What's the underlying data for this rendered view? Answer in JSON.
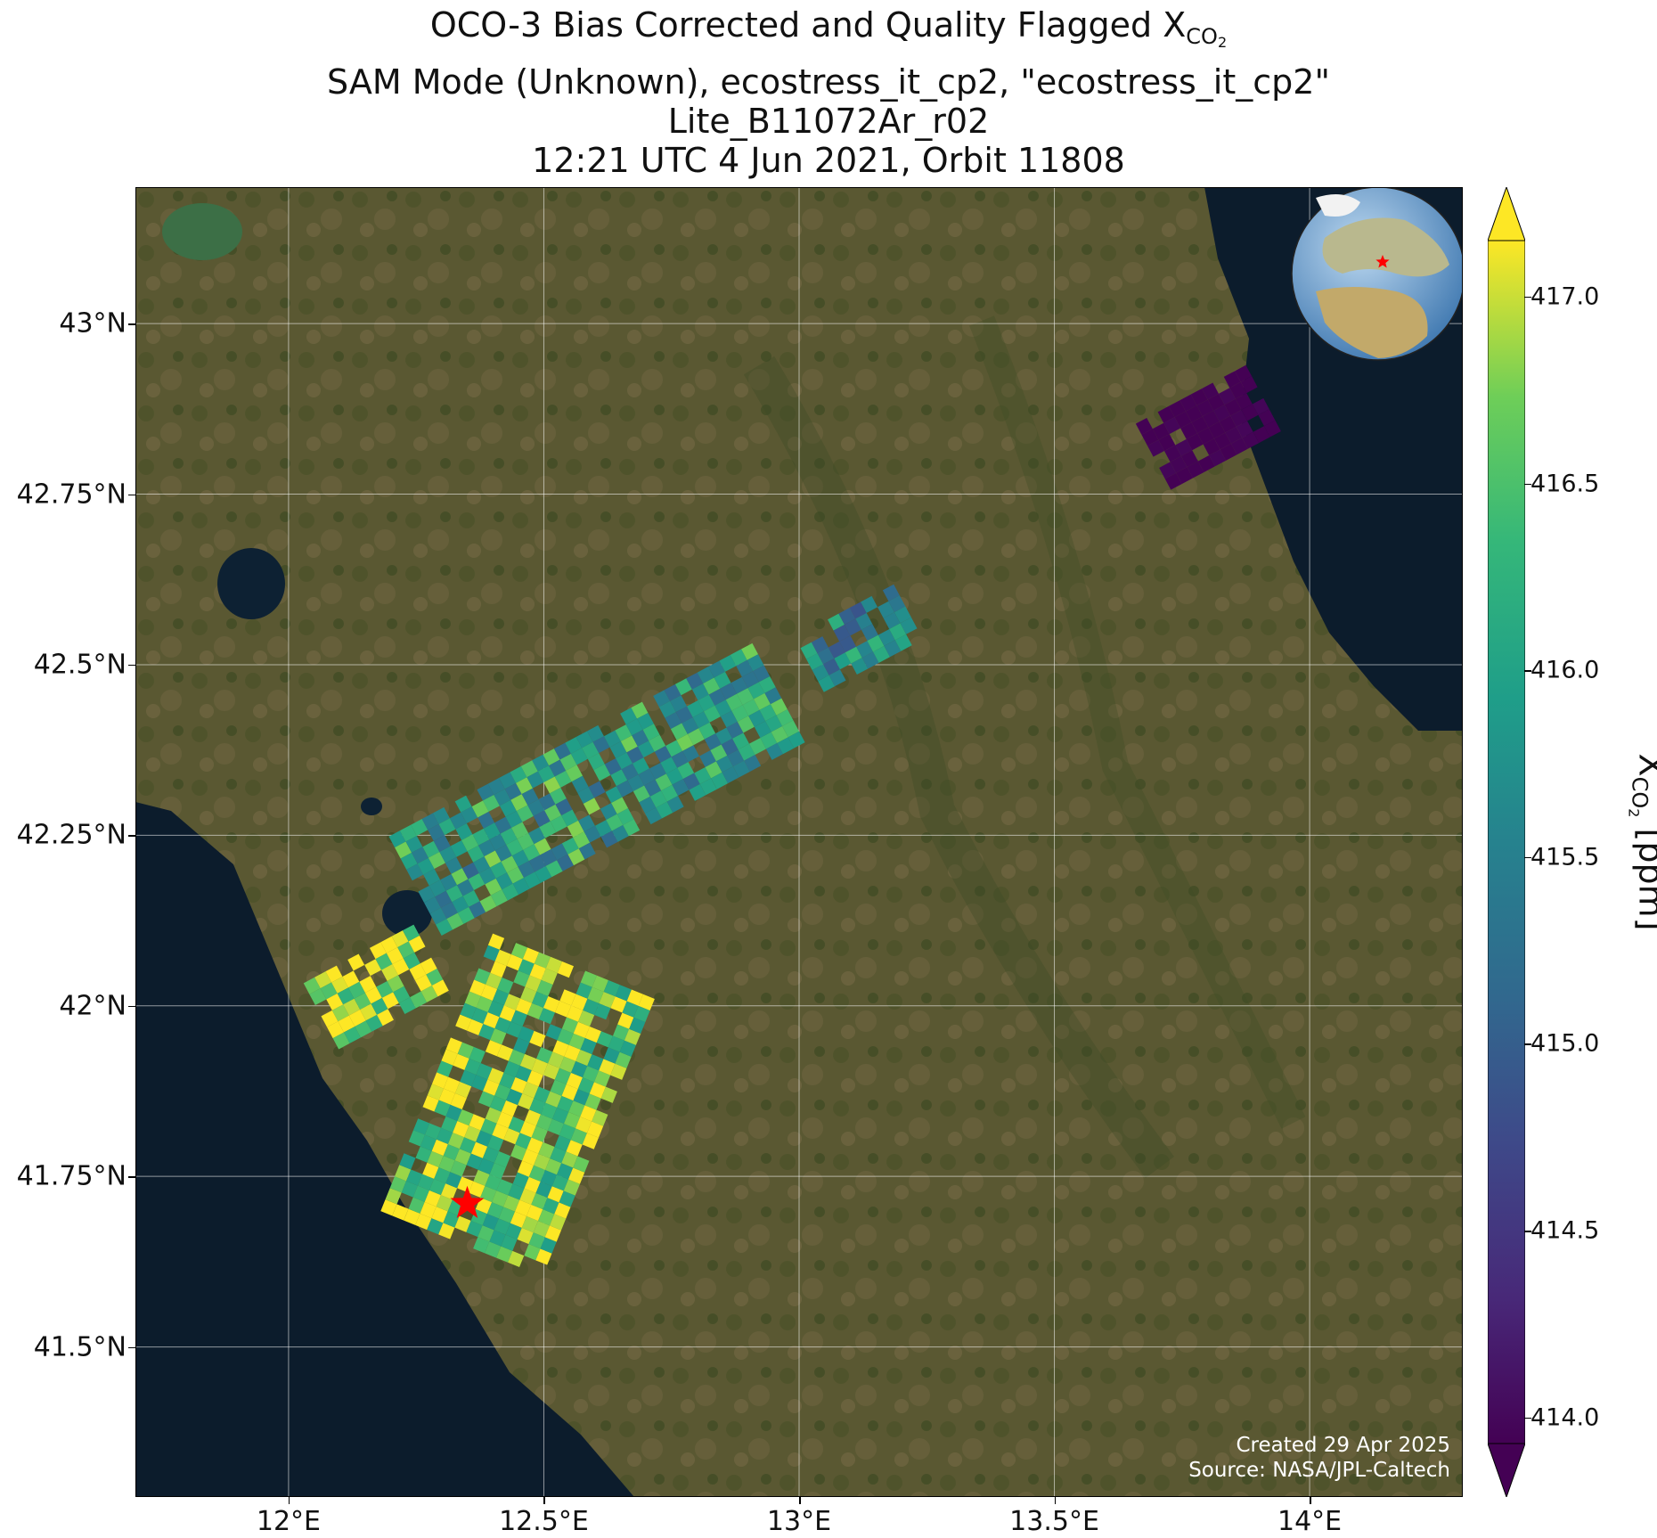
{
  "title": {
    "line1_prefix": "OCO-3 Bias Corrected and Quality Flagged X",
    "line1_sub": "CO",
    "line1_subsub": "2",
    "line2": "SAM Mode (Unknown), ecostress_it_cp2, \"ecostress_it_cp2\"",
    "line3": "Lite_B11072Ar_r02",
    "line4": "12:21 UTC 4 Jun 2021, Orbit 11808"
  },
  "credit": {
    "created": "Created 29 Apr 2025",
    "source": "Source: NASA/JPL-Caltech"
  },
  "map": {
    "lon_range": [
      11.7,
      14.3
    ],
    "lat_range": [
      41.28,
      43.2
    ],
    "lon_ticks": [
      12.0,
      12.5,
      13.0,
      13.5,
      14.0
    ],
    "lon_tick_labels": [
      "12°E",
      "12.5°E",
      "13°E",
      "13.5°E",
      "14°E"
    ],
    "lat_ticks": [
      41.5,
      41.75,
      42.0,
      42.25,
      42.5,
      42.75,
      43.0
    ],
    "lat_tick_labels": [
      "41.5°N",
      "41.75°N",
      "42°N",
      "42.25°N",
      "42.5°N",
      "42.75°N",
      "43°N"
    ],
    "gridlines": true,
    "basemap": "satellite imagery",
    "sea_color": "#0c1c2c",
    "land_color": "#5e5a36",
    "target_marker": {
      "lon": 12.35,
      "lat": 41.71,
      "symbol": "red-star",
      "color": "#ff0000"
    },
    "inset_globe": {
      "placement": "top-right",
      "marker_color": "#ff0000"
    }
  },
  "colorbar": {
    "colormap": "viridis",
    "min": 414.0,
    "max": 417.0,
    "extend": "both",
    "ticks": [
      414.0,
      414.5,
      415.0,
      415.5,
      416.0,
      416.5,
      417.0
    ],
    "tick_labels": [
      "414.0",
      "414.5",
      "415.0",
      "415.5",
      "416.0",
      "416.5",
      "417.0"
    ],
    "label_prefix": "X",
    "label_sub": "CO",
    "label_subsub": "2",
    "label_suffix": " [ppm]"
  },
  "chart_data": {
    "type": "heatmap",
    "title": "OCO-3 Bias Corrected and Quality Flagged XCO2",
    "xlabel": "",
    "ylabel": "",
    "xlim": [
      11.7,
      14.3
    ],
    "ylim": [
      41.28,
      43.2
    ],
    "value_label": "XCO2 [ppm]",
    "vmin": 414.0,
    "vmax": 417.0,
    "swaths": [
      {
        "name": "",
        "center_lon": 13.8,
        "center_lat": 42.85,
        "mean_xco2": 414.0
      },
      {
        "name": "",
        "center_lon": 13.12,
        "center_lat": 42.54,
        "mean_xco2": 415.6
      },
      {
        "name": "",
        "center_lon": 12.6,
        "center_lat": 42.32,
        "mean_xco2": 415.9
      },
      {
        "name": "",
        "center_lon": 12.17,
        "center_lat": 42.03,
        "mean_xco2": 416.9
      },
      {
        "name": "",
        "center_lon": 12.45,
        "center_lat": 41.85,
        "mean_xco2": 416.6
      }
    ]
  }
}
